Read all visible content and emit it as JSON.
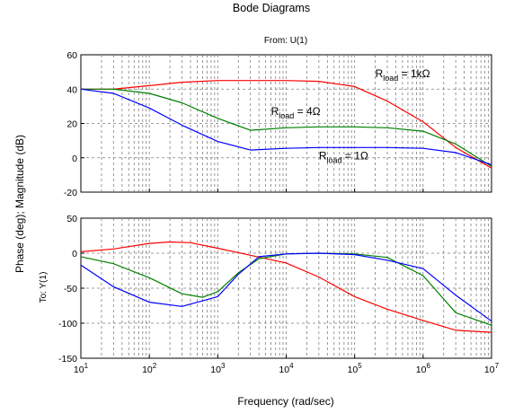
{
  "title": "Bode Diagrams",
  "from_label": "From: U(1)",
  "to_label": "To: Y(1)",
  "ylabel": "Phase (deg); Magnitude (dB)",
  "xlabel": "Frequency (rad/sec)",
  "colors": {
    "red": "#ff0000",
    "green": "#008000",
    "blue": "#0000ff",
    "grid": "#7f7f7f"
  },
  "chart_data": [
    {
      "type": "line",
      "xscale": "log",
      "xlim": [
        10,
        10000000
      ],
      "ylim": [
        -20,
        60
      ],
      "yticks": [
        -20,
        0,
        20,
        40,
        60
      ],
      "grid": true,
      "series": [
        {
          "name": "R_load = 1kΩ",
          "color": "red",
          "x": [
            10,
            30,
            100,
            300,
            1000,
            3000,
            10000,
            30000,
            100000,
            300000,
            1000000,
            3000000,
            10000000
          ],
          "y": [
            40,
            40,
            42,
            44,
            45,
            45,
            45,
            44.5,
            41.5,
            33,
            21,
            6,
            -6
          ]
        },
        {
          "name": "R_load = 4Ω",
          "color": "green",
          "x": [
            10,
            30,
            100,
            300,
            1000,
            3000,
            10000,
            30000,
            100000,
            300000,
            1000000,
            3000000,
            10000000
          ],
          "y": [
            40,
            40,
            37.5,
            32,
            23,
            16,
            17.5,
            18,
            18,
            17.5,
            15.5,
            8,
            -5
          ]
        },
        {
          "name": "R_load = 1Ω",
          "color": "blue",
          "x": [
            10,
            30,
            100,
            300,
            1000,
            3000,
            10000,
            30000,
            100000,
            300000,
            1000000,
            3000000,
            10000000
          ],
          "y": [
            40,
            37.5,
            29,
            19,
            9.5,
            4.5,
            5.5,
            6,
            6,
            6,
            5.5,
            3,
            -4
          ]
        }
      ],
      "annotations": [
        {
          "base": "R",
          "sub": "load",
          "text": " = 1kΩ",
          "x": 200000,
          "y": 47
        },
        {
          "base": "R",
          "sub": "load",
          "text": " = 4Ω",
          "x": 6000,
          "y": 25
        },
        {
          "base": "R",
          "sub": "load",
          "text": " = 1Ω",
          "x": 30000,
          "y": -1
        }
      ]
    },
    {
      "type": "line",
      "xscale": "log",
      "xlim": [
        10,
        10000000
      ],
      "ylim": [
        -150,
        50
      ],
      "yticks": [
        -150,
        -100,
        -50,
        0,
        50
      ],
      "grid": true,
      "series": [
        {
          "name": "R_load = 1kΩ",
          "color": "red",
          "x": [
            10,
            30,
            100,
            200,
            400,
            1000,
            3000,
            10000,
            30000,
            100000,
            300000,
            1000000,
            3000000,
            10000000
          ],
          "y": [
            2,
            6,
            14,
            16,
            15,
            7,
            -3,
            -14,
            -34,
            -62,
            -80,
            -96,
            -110,
            -113
          ]
        },
        {
          "name": "R_load = 4Ω",
          "color": "green",
          "x": [
            10,
            30,
            100,
            300,
            600,
            1000,
            2000,
            4000,
            10000,
            30000,
            100000,
            300000,
            1000000,
            3000000,
            10000000
          ],
          "y": [
            -5,
            -15,
            -35,
            -58,
            -63,
            -55,
            -28,
            -8,
            -1,
            0,
            -1,
            -6,
            -32,
            -85,
            -103
          ]
        },
        {
          "name": "R_load = 1Ω",
          "color": "blue",
          "x": [
            10,
            30,
            100,
            300,
            1000,
            2000,
            4000,
            10000,
            30000,
            100000,
            300000,
            1000000,
            3000000,
            10000000
          ],
          "y": [
            -17,
            -48,
            -70,
            -76,
            -62,
            -30,
            -5,
            -1,
            0,
            -2,
            -10,
            -22,
            -60,
            -97
          ]
        }
      ]
    }
  ],
  "xticks": [
    {
      "base": "10",
      "exp": "1"
    },
    {
      "base": "10",
      "exp": "2"
    },
    {
      "base": "10",
      "exp": "3"
    },
    {
      "base": "10",
      "exp": "4"
    },
    {
      "base": "10",
      "exp": "5"
    },
    {
      "base": "10",
      "exp": "6"
    },
    {
      "base": "10",
      "exp": "7"
    }
  ]
}
